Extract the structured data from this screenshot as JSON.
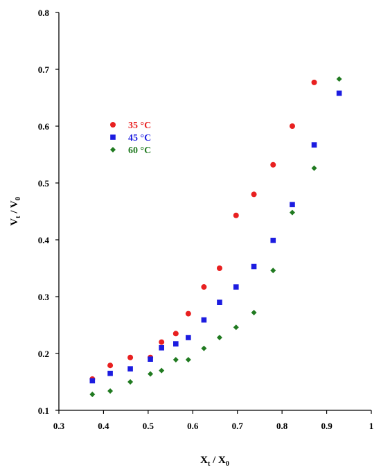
{
  "chart_data": {
    "type": "scatter",
    "xlabel": {
      "main": "X",
      "sub_t": "t",
      "sep": " / ",
      "main2": "X",
      "sub_0": "0"
    },
    "ylabel": {
      "main": "V",
      "sub_t": "t",
      "sep": " / ",
      "main2": "V",
      "sub_0": "0"
    },
    "xlim": [
      0.3,
      1.0
    ],
    "ylim": [
      0.1,
      0.8
    ],
    "x_ticks": [
      "0.3",
      "0.4",
      "0.5",
      "0.6",
      "0.7",
      "0.8",
      "0.9",
      "1"
    ],
    "y_ticks": [
      "0.1",
      "0.2",
      "0.3",
      "0.4",
      "0.5",
      "0.6",
      "0.7",
      "0.8"
    ],
    "grid": false,
    "legend_position": "upper-left",
    "series": [
      {
        "name": "35 °C",
        "color": "#e82020",
        "marker": "circle",
        "x": [
          0.375,
          0.415,
          0.46,
          0.505,
          0.53,
          0.562,
          0.59,
          0.625,
          0.66,
          0.697,
          0.737,
          0.78,
          0.823,
          0.872
        ],
        "y": [
          0.155,
          0.179,
          0.193,
          0.193,
          0.22,
          0.235,
          0.27,
          0.317,
          0.35,
          0.443,
          0.48,
          0.532,
          0.6,
          0.677
        ]
      },
      {
        "name": "45 °C",
        "color": "#1c1ce0",
        "marker": "square",
        "x": [
          0.375,
          0.415,
          0.46,
          0.505,
          0.53,
          0.562,
          0.59,
          0.625,
          0.66,
          0.697,
          0.737,
          0.78,
          0.823,
          0.872,
          0.928
        ],
        "y": [
          0.152,
          0.165,
          0.173,
          0.19,
          0.21,
          0.217,
          0.228,
          0.259,
          0.29,
          0.317,
          0.353,
          0.399,
          0.462,
          0.567,
          0.658
        ]
      },
      {
        "name": "60 °C",
        "color": "#207a20",
        "marker": "diamond",
        "x": [
          0.375,
          0.415,
          0.46,
          0.505,
          0.53,
          0.562,
          0.59,
          0.625,
          0.66,
          0.697,
          0.737,
          0.78,
          0.823,
          0.872,
          0.928
        ],
        "y": [
          0.128,
          0.134,
          0.15,
          0.164,
          0.17,
          0.189,
          0.189,
          0.209,
          0.228,
          0.246,
          0.272,
          0.346,
          0.448,
          0.526,
          0.683
        ]
      }
    ]
  }
}
